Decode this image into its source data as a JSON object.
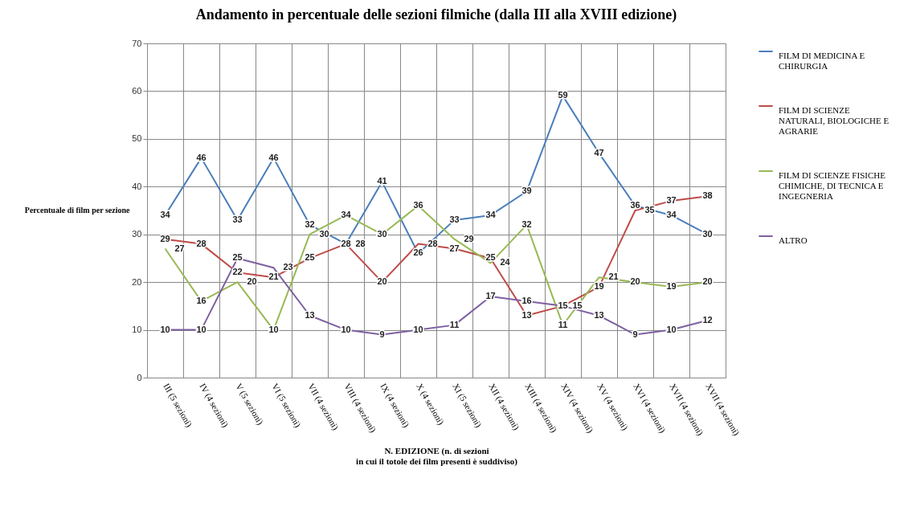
{
  "chart_data": {
    "type": "line",
    "title": "Andamento in percentuale delle sezioni filmiche (dalla III alla XVIII edizione)",
    "xlabel": "N. EDIZIONE  (n. di sezioni\nin cui il totole dei film presenti è suddiviso)",
    "ylabel": "Percentuale di film per sezione",
    "categories": [
      "III (5 sezioni)",
      "IV (4 sezioni)",
      "V (5 sezioni)",
      "VI (5 sezioni)",
      "VII (4 sezioni)",
      "VIII (4 sezioni)",
      "IX (4 sezioni)",
      "X (4 sezioni)",
      "XI (5 sezioni)",
      "XII (4 sezioni)",
      "XIII (4 sezioni)",
      "XIV (4 sezioni)",
      "XV (4 sezioni)",
      "XVI (4 sezioni)",
      "XVII (4 sezioni)",
      "XVII (4 sezioni)"
    ],
    "series": [
      {
        "name": "FILM DI MEDICINA E CHIRURGIA",
        "color": "#4a7ebb",
        "values": [
          34,
          46,
          33,
          46,
          32,
          28,
          41,
          26,
          33,
          34,
          39,
          59,
          47,
          36,
          34,
          30
        ]
      },
      {
        "name": "FILM DI SCIENZE NATURALI, BIOLOGICHE E AGRARIE",
        "color": "#be4b48",
        "values": [
          29,
          28,
          22,
          21,
          25,
          28,
          20,
          28,
          27,
          25,
          13,
          15,
          19,
          35,
          37,
          38
        ]
      },
      {
        "name": "FILM DI SCIENZE FISICHE CHIMICHE, DI TECNICA E INGEGNERIA",
        "color": "#98b954",
        "values": [
          27,
          16,
          20,
          10,
          30,
          34,
          30,
          36,
          29,
          24,
          32,
          11,
          21,
          20,
          19,
          20
        ]
      },
      {
        "name": "ALTRO",
        "color": "#7d60a0",
        "values": [
          10,
          10,
          25,
          23,
          13,
          10,
          9,
          10,
          11,
          17,
          16,
          15,
          13,
          9,
          10,
          12
        ]
      }
    ],
    "ylim": [
      0,
      70
    ],
    "yticks": [
      0,
      10,
      20,
      30,
      40,
      50,
      60,
      70
    ],
    "grid": true,
    "legend": "right",
    "data_labels": true,
    "marker": "none",
    "line_style": "solid"
  }
}
